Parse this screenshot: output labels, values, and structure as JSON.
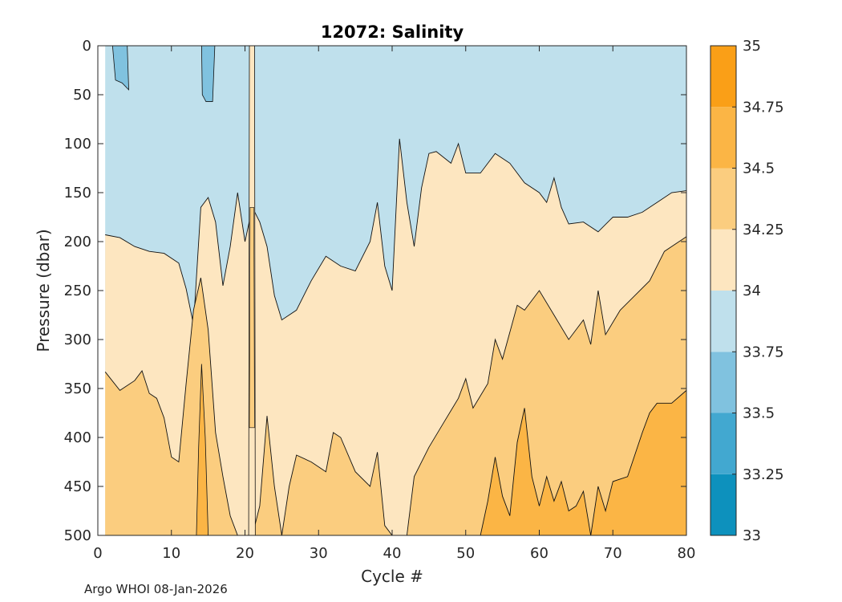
{
  "chart_data": {
    "type": "filled-contour",
    "title": "12072:  Salinity",
    "xlabel": "Cycle #",
    "ylabel": "Pressure (dbar)",
    "xlim": [
      0,
      80
    ],
    "ylim": [
      0,
      500
    ],
    "y_reversed": true,
    "xticks": [
      0,
      10,
      20,
      30,
      40,
      50,
      60,
      70,
      80
    ],
    "yticks": [
      0,
      50,
      100,
      150,
      200,
      250,
      300,
      350,
      400,
      450,
      500
    ],
    "data_x_range": [
      1,
      80
    ],
    "colorbar": {
      "levels": [
        33,
        33.25,
        33.5,
        33.75,
        34,
        34.25,
        34.5,
        34.75,
        35
      ],
      "tick_labels": [
        "33",
        "33.25",
        "33.5",
        "33.75",
        "34",
        "34.25",
        "34.5",
        "34.75",
        "35"
      ],
      "colors": [
        "#0d91bd",
        "#42a8d0",
        "#80c2df",
        "#bfe0ec",
        "#fde6c0",
        "#fbcd7f",
        "#fbb545",
        "#fa9f17"
      ]
    },
    "contours": [
      {
        "level": 34,
        "boundary_pressure": [
          [
            1,
            193
          ],
          [
            3,
            196
          ],
          [
            5,
            205
          ],
          [
            7,
            210
          ],
          [
            9,
            212
          ],
          [
            11,
            222
          ],
          [
            12,
            248
          ],
          [
            13,
            285
          ],
          [
            14,
            165
          ],
          [
            15,
            155
          ],
          [
            16,
            180
          ],
          [
            17,
            245
          ],
          [
            18,
            205
          ],
          [
            19,
            150
          ],
          [
            20,
            200
          ],
          [
            21,
            165
          ],
          [
            22,
            180
          ],
          [
            23,
            205
          ],
          [
            24,
            255
          ],
          [
            25,
            280
          ],
          [
            27,
            270
          ],
          [
            29,
            240
          ],
          [
            31,
            215
          ],
          [
            33,
            225
          ],
          [
            35,
            230
          ],
          [
            37,
            200
          ],
          [
            38,
            160
          ],
          [
            39,
            225
          ],
          [
            40,
            250
          ],
          [
            41,
            95
          ],
          [
            42,
            160
          ],
          [
            43,
            205
          ],
          [
            44,
            145
          ],
          [
            45,
            110
          ],
          [
            46,
            108
          ],
          [
            48,
            120
          ],
          [
            49,
            100
          ],
          [
            50,
            130
          ],
          [
            52,
            130
          ],
          [
            54,
            110
          ],
          [
            56,
            120
          ],
          [
            58,
            140
          ],
          [
            60,
            150
          ],
          [
            61,
            160
          ],
          [
            62,
            135
          ],
          [
            63,
            165
          ],
          [
            64,
            182
          ],
          [
            66,
            180
          ],
          [
            68,
            190
          ],
          [
            70,
            175
          ],
          [
            72,
            175
          ],
          [
            74,
            170
          ],
          [
            76,
            160
          ],
          [
            78,
            150
          ],
          [
            80,
            148
          ]
        ]
      },
      {
        "level": 34.25,
        "boundary_pressure": [
          [
            1,
            333
          ],
          [
            3,
            352
          ],
          [
            5,
            342
          ],
          [
            6,
            332
          ],
          [
            7,
            355
          ],
          [
            8,
            360
          ],
          [
            9,
            380
          ],
          [
            10,
            420
          ],
          [
            11,
            425
          ],
          [
            12,
            345
          ],
          [
            13,
            270
          ],
          [
            14,
            237
          ],
          [
            15,
            290
          ],
          [
            16,
            395
          ],
          [
            17,
            440
          ],
          [
            18,
            480
          ],
          [
            19,
            500
          ],
          [
            21,
            500
          ],
          [
            22,
            470
          ],
          [
            23,
            378
          ],
          [
            24,
            450
          ],
          [
            25,
            500
          ],
          [
            26,
            450
          ],
          [
            27,
            418
          ],
          [
            29,
            425
          ],
          [
            31,
            435
          ],
          [
            32,
            395
          ],
          [
            33,
            400
          ],
          [
            35,
            435
          ],
          [
            37,
            450
          ],
          [
            38,
            415
          ],
          [
            39,
            490
          ],
          [
            40,
            500
          ],
          [
            42,
            500
          ],
          [
            43,
            440
          ],
          [
            45,
            410
          ],
          [
            47,
            385
          ],
          [
            49,
            360
          ],
          [
            50,
            340
          ],
          [
            51,
            370
          ],
          [
            53,
            345
          ],
          [
            54,
            300
          ],
          [
            55,
            320
          ],
          [
            57,
            265
          ],
          [
            58,
            270
          ],
          [
            60,
            250
          ],
          [
            62,
            275
          ],
          [
            64,
            300
          ],
          [
            66,
            280
          ],
          [
            67,
            305
          ],
          [
            68,
            250
          ],
          [
            69,
            295
          ],
          [
            71,
            270
          ],
          [
            73,
            255
          ],
          [
            75,
            240
          ],
          [
            77,
            210
          ],
          [
            78,
            205
          ],
          [
            80,
            195
          ]
        ]
      },
      {
        "level": 34.5,
        "boundary_pressure": [
          [
            52,
            500
          ],
          [
            53,
            465
          ],
          [
            54,
            420
          ],
          [
            55,
            460
          ],
          [
            56,
            480
          ],
          [
            57,
            405
          ],
          [
            58,
            370
          ],
          [
            59,
            440
          ],
          [
            60,
            470
          ],
          [
            61,
            440
          ],
          [
            62,
            465
          ],
          [
            63,
            445
          ],
          [
            64,
            475
          ],
          [
            65,
            470
          ],
          [
            66,
            455
          ],
          [
            67,
            500
          ],
          [
            68,
            450
          ],
          [
            69,
            475
          ],
          [
            70,
            445
          ],
          [
            72,
            440
          ],
          [
            74,
            395
          ],
          [
            75,
            375
          ],
          [
            76,
            365
          ],
          [
            78,
            365
          ],
          [
            80,
            352
          ]
        ]
      }
    ]
  },
  "footer": "Argo WHOI 08-Jan-2026"
}
